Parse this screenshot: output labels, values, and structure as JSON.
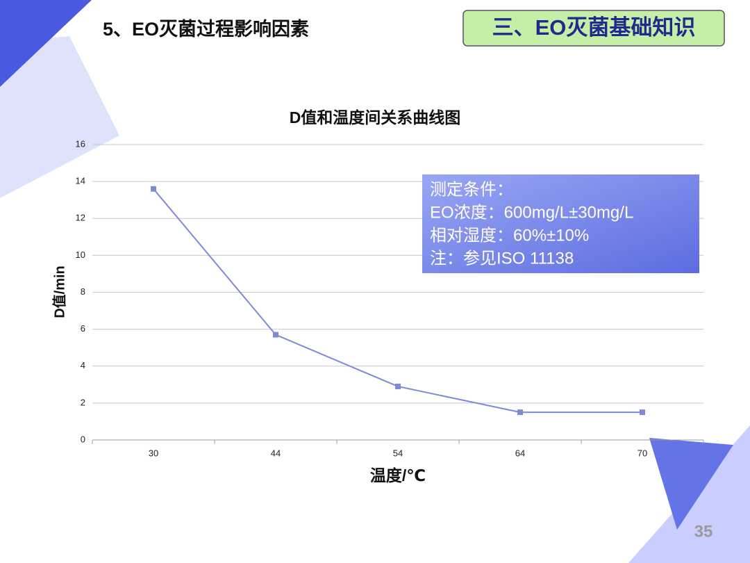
{
  "slide": {
    "heading": "5、EO灭菌过程影响因素",
    "badge": "三、EO灭菌基础知识",
    "page_number": "35"
  },
  "chart_data": {
    "type": "line",
    "title": "D值和温度间关系曲线图",
    "x_label": "温度/℃",
    "y_label": "D值/min",
    "categories": [
      "30",
      "44",
      "54",
      "64",
      "70"
    ],
    "series": [
      {
        "name": "D值",
        "color": "#8088d8",
        "values": [
          13.6,
          5.7,
          2.9,
          1.5,
          1.5
        ]
      }
    ],
    "ylim": [
      0,
      16
    ],
    "yticks": [
      0,
      2,
      4,
      6,
      8,
      10,
      12,
      14,
      16
    ],
    "grid": true,
    "annotation": [
      "测定条件：",
      "EO浓度：600mg/L±30mg/L",
      "相对湿度：60%±10%",
      "注：参见ISO 11138"
    ]
  }
}
